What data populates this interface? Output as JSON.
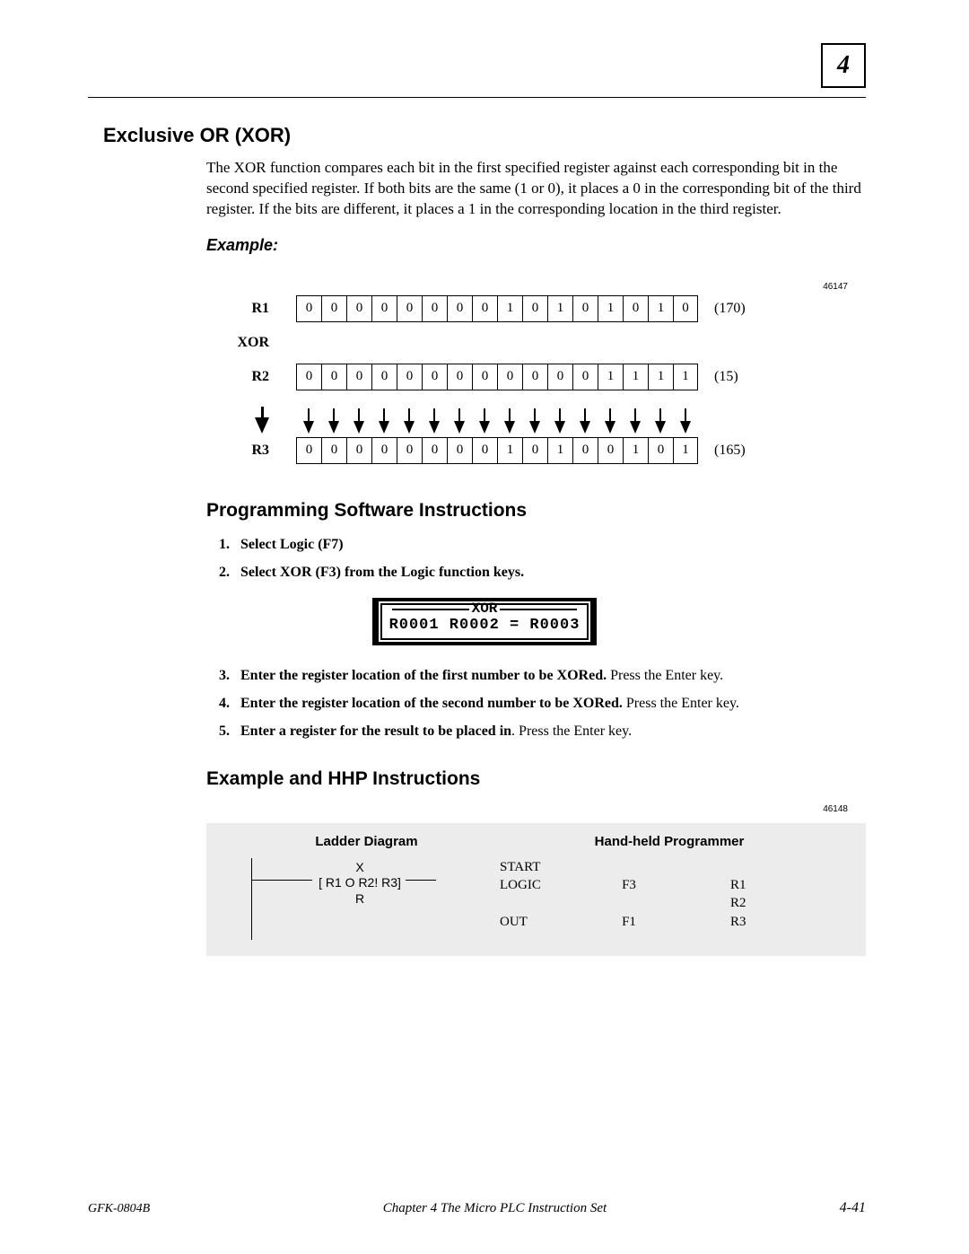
{
  "chapter_number": "4",
  "section_title": "Exclusive OR (XOR)",
  "intro_paragraph": "The XOR function compares each bit in the first specified register against each corresponding bit in the second specified register. If both bits are the same (1 or 0), it places a 0 in the corresponding bit of the third register. If the bits are different, it places a 1 in the corresponding location in the third register.",
  "example_label": "Example:",
  "fig_num_1": "46147",
  "diagram": {
    "r1": {
      "label": "R1",
      "bits": [
        "0",
        "0",
        "0",
        "0",
        "0",
        "0",
        "0",
        "0",
        "1",
        "0",
        "1",
        "0",
        "1",
        "0",
        "1",
        "0"
      ],
      "decimal": "(170)"
    },
    "op": "XOR",
    "r2": {
      "label": "R2",
      "bits": [
        "0",
        "0",
        "0",
        "0",
        "0",
        "0",
        "0",
        "0",
        "0",
        "0",
        "0",
        "0",
        "1",
        "1",
        "1",
        "1"
      ],
      "decimal": "(15)"
    },
    "r3": {
      "label": "R3",
      "bits": [
        "0",
        "0",
        "0",
        "0",
        "0",
        "0",
        "0",
        "0",
        "1",
        "0",
        "1",
        "0",
        "0",
        "1",
        "0",
        "1"
      ],
      "decimal": "(165)"
    }
  },
  "subsection_1": "Programming Software Instructions",
  "steps_a": [
    {
      "bold": "Select Logic (F7)",
      "rest": ""
    },
    {
      "bold": "Select XOR (F3) from the Logic function keys.",
      "rest": ""
    }
  ],
  "xor_box": {
    "title": "XOR",
    "line": "R0001   R0002 = R0003"
  },
  "steps_b": [
    {
      "num": "3.",
      "bold": "Enter the register location of the first number to be XORed.",
      "rest": "  Press the Enter key."
    },
    {
      "num": "4.",
      "bold": "Enter the register location of the second number to be XORed.",
      "rest": " Press the Enter key."
    },
    {
      "num": "5.",
      "bold": "Enter a register for the result to be placed in",
      "rest": ".   Press the Enter key."
    }
  ],
  "subsection_2": "Example and HHP Instructions",
  "fig_num_2": "46148",
  "hhp": {
    "header_left": "Ladder Diagram",
    "header_right": "Hand-held Programmer",
    "ladder": {
      "line1": "X",
      "line2": "[ R1 O R2!   R3]",
      "line3": "R"
    },
    "col1": [
      "START",
      "LOGIC",
      "",
      "OUT"
    ],
    "col2": [
      "",
      "F3",
      "",
      "F1"
    ],
    "col3": [
      "",
      "R1",
      "R2",
      "R3"
    ]
  },
  "footer": {
    "left": "GFK-0804B",
    "center": "Chapter 4   The Micro PLC Instruction Set",
    "right": "4-41"
  },
  "colors": {
    "bg": "#ffffff",
    "text": "#000000",
    "table_bg": "#ececec"
  }
}
